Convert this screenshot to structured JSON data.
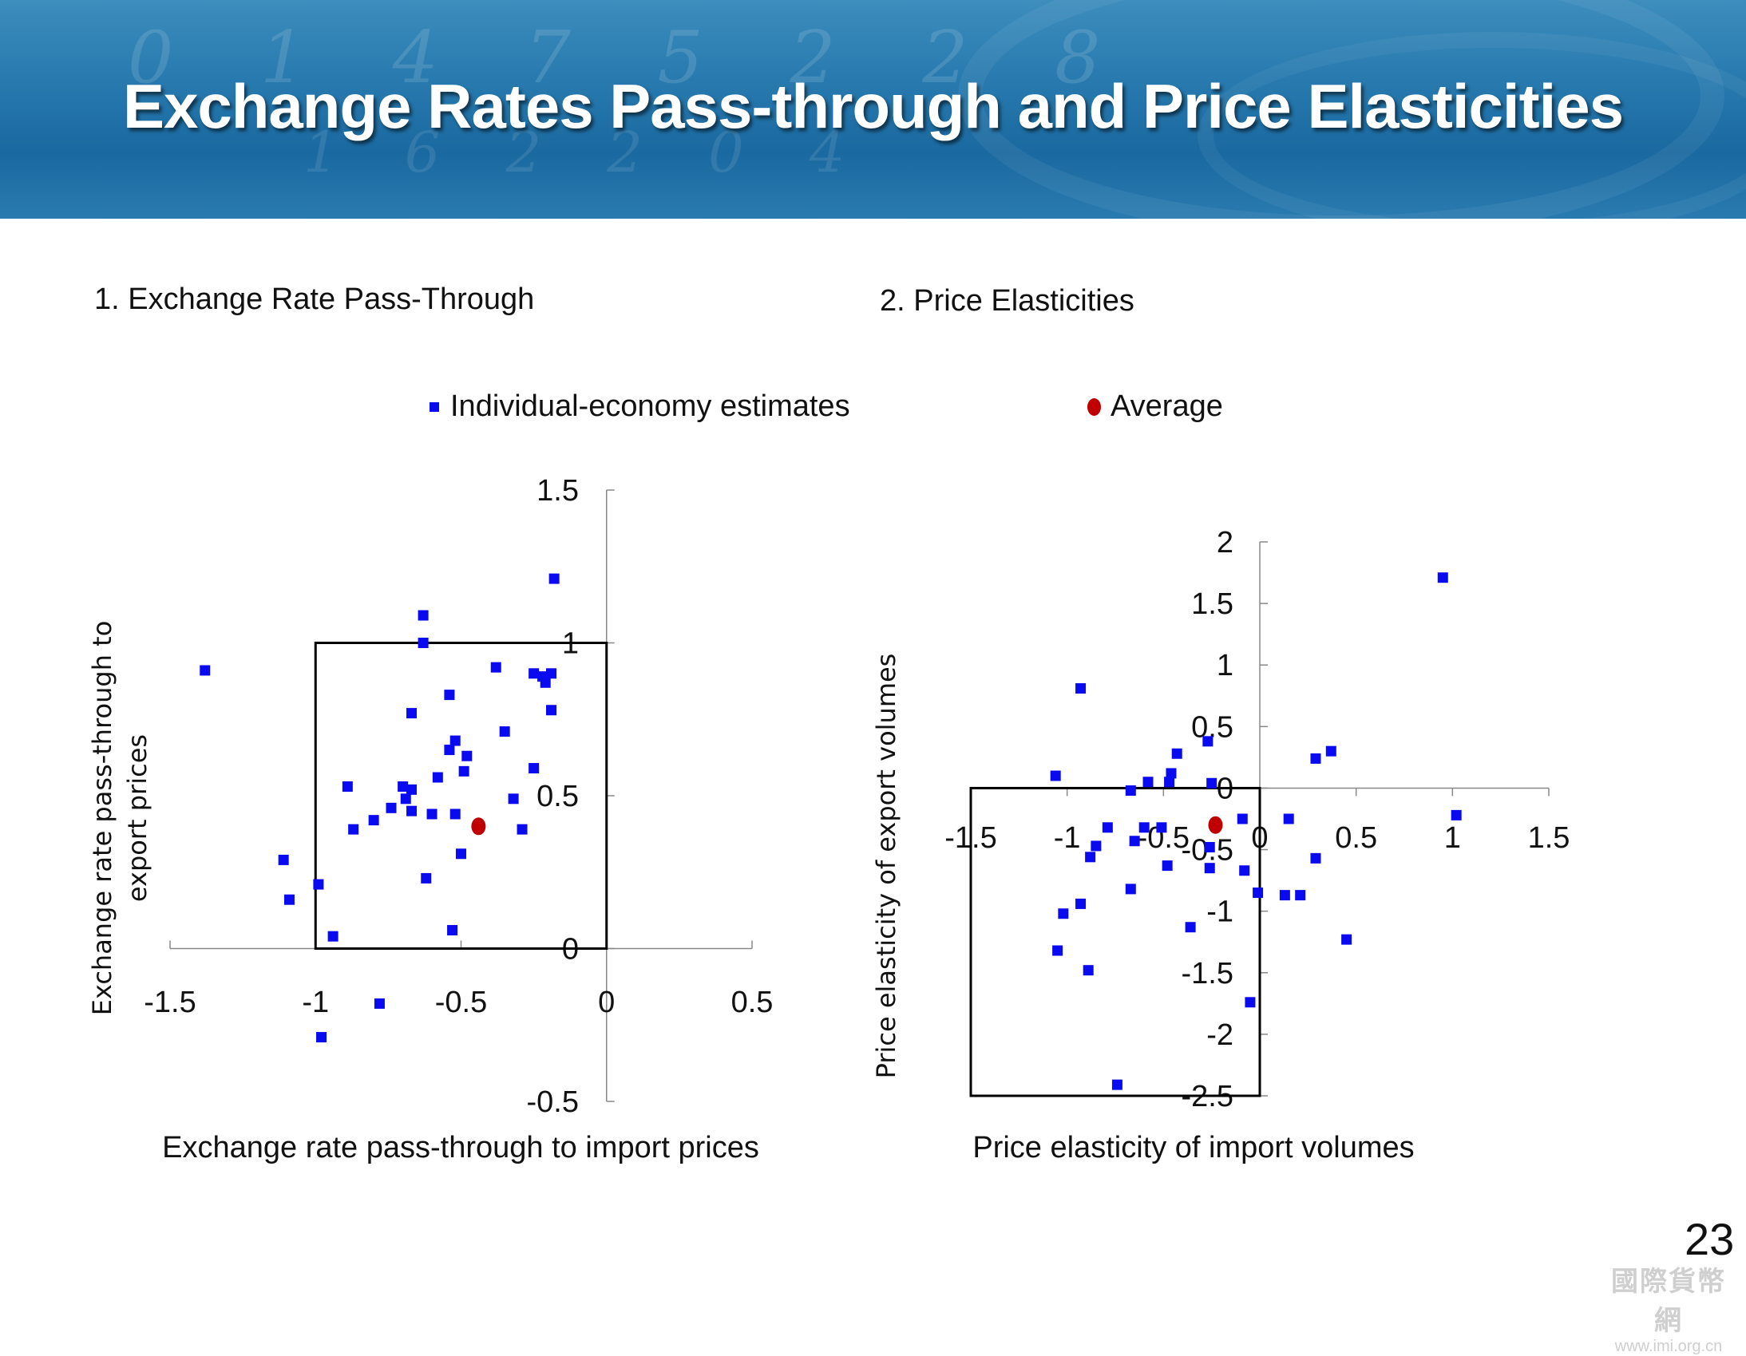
{
  "slide": {
    "title": "Exchange Rates Pass-through and Price Elasticities",
    "page_number": "23",
    "watermark_url": "www.imi.org.cn"
  },
  "legend": {
    "estimates_label": "Individual-economy estimates",
    "average_label": "Average"
  },
  "colors": {
    "estimates": "#0a0af0",
    "average": "#c00000",
    "banner": "#2678ad"
  },
  "chart_data": [
    {
      "type": "scatter",
      "subtitle": "1. Exchange Rate Pass-Through",
      "xlabel": "Exchange rate pass-through to import prices",
      "ylabel_lines": [
        "Exchange rate pass-through to",
        "export prices"
      ],
      "xlim": [
        -1.5,
        0.5
      ],
      "ylim": [
        -0.5,
        1.5
      ],
      "xticks": [
        "-1.5",
        "-1",
        "-0.5",
        "0",
        "0.5"
      ],
      "yticks": [
        "-0.5",
        "0",
        "0.5",
        "1",
        "1.5"
      ],
      "box": {
        "x": [
          -1,
          0
        ],
        "y": [
          0,
          1
        ]
      },
      "series": [
        {
          "name": "Individual-economy estimates",
          "points": [
            [
              -1.38,
              0.91
            ],
            [
              -0.63,
              1.09
            ],
            [
              -0.63,
              1.0
            ],
            [
              -0.18,
              1.21
            ],
            [
              -0.38,
              0.92
            ],
            [
              -0.25,
              0.9
            ],
            [
              -0.22,
              0.89
            ],
            [
              -0.21,
              0.87
            ],
            [
              -0.19,
              0.9
            ],
            [
              -0.19,
              0.78
            ],
            [
              -0.54,
              0.83
            ],
            [
              -0.67,
              0.77
            ],
            [
              -0.35,
              0.71
            ],
            [
              -0.52,
              0.68
            ],
            [
              -0.54,
              0.65
            ],
            [
              -0.48,
              0.63
            ],
            [
              -0.25,
              0.59
            ],
            [
              -0.49,
              0.58
            ],
            [
              -0.58,
              0.56
            ],
            [
              -0.89,
              0.53
            ],
            [
              -0.7,
              0.53
            ],
            [
              -0.67,
              0.52
            ],
            [
              -0.69,
              0.49
            ],
            [
              -0.32,
              0.49
            ],
            [
              -0.74,
              0.46
            ],
            [
              -0.67,
              0.45
            ],
            [
              -0.6,
              0.44
            ],
            [
              -0.52,
              0.44
            ],
            [
              -0.8,
              0.42
            ],
            [
              -0.87,
              0.39
            ],
            [
              -0.29,
              0.39
            ],
            [
              -0.5,
              0.31
            ],
            [
              -1.11,
              0.29
            ],
            [
              -0.62,
              0.23
            ],
            [
              -0.99,
              0.21
            ],
            [
              -1.09,
              0.16
            ],
            [
              -0.53,
              0.06
            ],
            [
              -0.94,
              0.04
            ],
            [
              -0.78,
              -0.18
            ],
            [
              -0.98,
              -0.29
            ]
          ]
        },
        {
          "name": "Average",
          "points": [
            [
              -0.44,
              0.4
            ]
          ]
        }
      ]
    },
    {
      "type": "scatter",
      "subtitle": "2. Price Elasticities",
      "xlabel": "Price elasticity of import volumes",
      "ylabel_lines": [
        "Price elasticity of export volumes"
      ],
      "xlim": [
        -1.5,
        1.5
      ],
      "ylim": [
        -2.5,
        2
      ],
      "xticks": [
        "-1.5",
        "-1",
        "-0.5",
        "0",
        "0.5",
        "1",
        "1.5"
      ],
      "yticks": [
        "-2.5",
        "-2",
        "-1.5",
        "-1",
        "-0.5",
        "0",
        "0.5",
        "1",
        "1.5",
        "2"
      ],
      "box": {
        "x": [
          -1.5,
          0
        ],
        "y": [
          -2.5,
          0
        ]
      },
      "series": [
        {
          "name": "Individual-economy estimates",
          "points": [
            [
              0.95,
              1.71
            ],
            [
              -0.93,
              0.81
            ],
            [
              0.37,
              0.3
            ],
            [
              0.29,
              0.24
            ],
            [
              -0.27,
              0.38
            ],
            [
              -0.43,
              0.28
            ],
            [
              -1.06,
              0.1
            ],
            [
              -0.46,
              0.12
            ],
            [
              -0.58,
              0.05
            ],
            [
              -0.47,
              0.05
            ],
            [
              -0.25,
              0.04
            ],
            [
              -0.67,
              -0.02
            ],
            [
              1.02,
              -0.22
            ],
            [
              0.15,
              -0.25
            ],
            [
              -0.09,
              -0.25
            ],
            [
              -0.79,
              -0.32
            ],
            [
              -0.6,
              -0.32
            ],
            [
              -0.51,
              -0.32
            ],
            [
              -0.65,
              -0.43
            ],
            [
              -0.85,
              -0.47
            ],
            [
              -0.26,
              -0.48
            ],
            [
              -0.88,
              -0.56
            ],
            [
              0.29,
              -0.57
            ],
            [
              -0.48,
              -0.63
            ],
            [
              -0.26,
              -0.65
            ],
            [
              -0.08,
              -0.67
            ],
            [
              -0.67,
              -0.82
            ],
            [
              -0.01,
              -0.85
            ],
            [
              0.13,
              -0.87
            ],
            [
              0.21,
              -0.87
            ],
            [
              -0.93,
              -0.94
            ],
            [
              -1.02,
              -1.02
            ],
            [
              -0.36,
              -1.13
            ],
            [
              0.45,
              -1.23
            ],
            [
              -1.05,
              -1.32
            ],
            [
              -0.89,
              -1.48
            ],
            [
              -0.05,
              -1.74
            ],
            [
              -0.74,
              -2.41
            ]
          ]
        },
        {
          "name": "Average",
          "points": [
            [
              -0.23,
              -0.3
            ]
          ]
        }
      ]
    }
  ]
}
